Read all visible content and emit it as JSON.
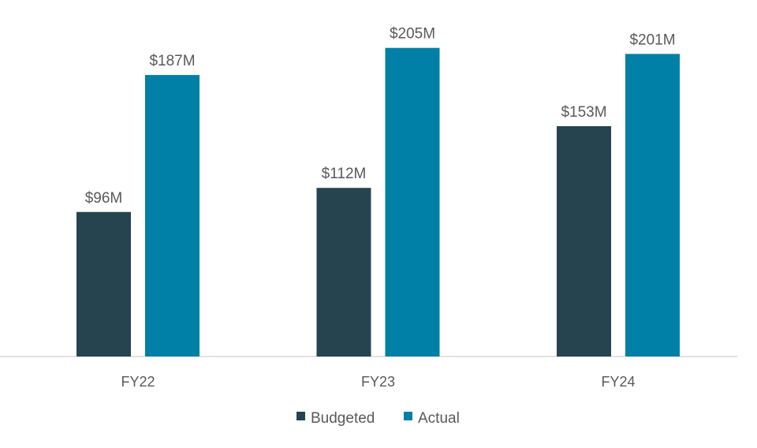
{
  "chart_data": {
    "type": "bar",
    "title": "",
    "xlabel": "",
    "ylabel": "",
    "categories": [
      "FY22",
      "FY23",
      "FY24"
    ],
    "series": [
      {
        "name": "Budgeted",
        "values": [
          96,
          112,
          153
        ],
        "labels": [
          "$96M",
          "$112M",
          "$153M"
        ],
        "color": "#25444f"
      },
      {
        "name": "Actual",
        "values": [
          187,
          205,
          201
        ],
        "labels": [
          "$187M",
          "$205M",
          "$201M"
        ],
        "color": "#0080a6"
      }
    ],
    "ylim": [
      0,
      230
    ],
    "grid": false,
    "legend": "bottom"
  }
}
